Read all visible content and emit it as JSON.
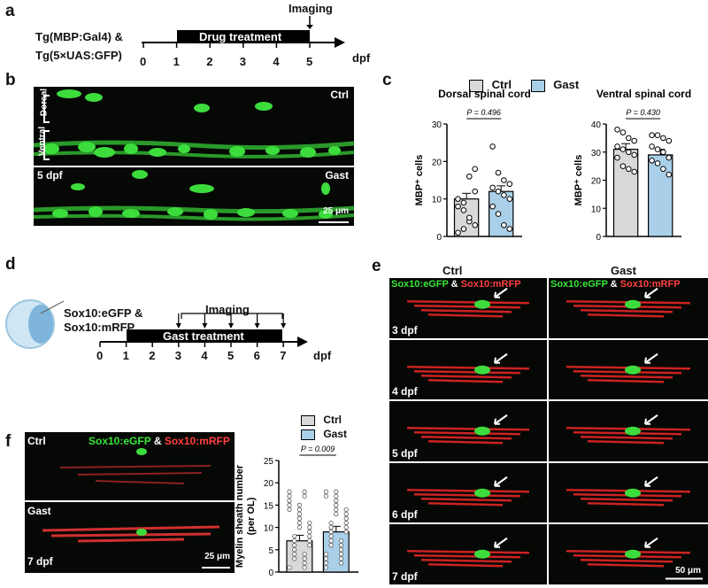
{
  "panel_labels": {
    "a": "a",
    "b": "b",
    "c": "c",
    "d": "d",
    "e": "e",
    "f": "f"
  },
  "panel_a": {
    "line1": "Tg(MBP:Gal4) &",
    "line2": "Tg(5×UAS:GFP)",
    "imaging": "Imaging",
    "treatment": "Drug treatment",
    "ticks": [
      "0",
      "1",
      "2",
      "3",
      "4",
      "5"
    ],
    "unit": "dpf"
  },
  "panel_b": {
    "ctrl": "Ctrl",
    "gast": "Gast",
    "age": "5 dpf",
    "dorsal": "Dorsal",
    "ventral": "Ventral",
    "scale": "25 μm"
  },
  "panel_c": {
    "legend": [
      "Ctrl",
      "Gast"
    ],
    "colors": {
      "ctrl": "#d9d9d9",
      "gast": "#a9d0e8"
    },
    "chart_data": [
      {
        "type": "bar",
        "title": "Dorsal spinal cord",
        "ylabel": "MBP⁺ cells",
        "categories": [
          "Ctrl",
          "Gast"
        ],
        "values": [
          10,
          12
        ],
        "ylim": [
          0,
          30
        ],
        "yticks": [
          "0",
          "10",
          "20",
          "30"
        ],
        "p_value": "P = 0.496",
        "points": [
          [
            8,
            9,
            16,
            18,
            10,
            7,
            4,
            3,
            1,
            2,
            5,
            12
          ],
          [
            24,
            17,
            15,
            14,
            13,
            12,
            11,
            10,
            8,
            6,
            3,
            2
          ]
        ]
      },
      {
        "type": "bar",
        "title": "Ventral spinal cord",
        "ylabel": "MBP⁺ cells",
        "categories": [
          "Ctrl",
          "Gast"
        ],
        "values": [
          31,
          29
        ],
        "ylim": [
          0,
          40
        ],
        "yticks": [
          "0",
          "10",
          "20",
          "30",
          "40"
        ],
        "p_value": "P = 0.430",
        "points": [
          [
            38,
            37,
            35,
            34,
            32,
            31,
            30,
            29,
            28,
            25,
            24,
            23
          ],
          [
            36,
            36,
            35,
            34,
            32,
            31,
            30,
            28,
            27,
            26,
            24,
            22
          ]
        ]
      }
    ]
  },
  "panel_d": {
    "line1": "Sox10:eGFP &",
    "line2": "Sox10:mRFP",
    "imaging": "Imaging",
    "treatment": "Gast treatment",
    "ticks": [
      "0",
      "1",
      "2",
      "3",
      "4",
      "5",
      "6",
      "7"
    ],
    "unit": "dpf"
  },
  "panel_e": {
    "ctrl": "Ctrl",
    "gast": "Gast",
    "marker_green": "Sox10:eGFP",
    "amp": "&",
    "marker_red": "Sox10:mRFP",
    "rows": [
      "3 dpf",
      "4 dpf",
      "5 dpf",
      "6 dpf",
      "7 dpf"
    ],
    "scale": "50 μm"
  },
  "panel_f": {
    "ctrl": "Ctrl",
    "gast": "Gast",
    "age": "7 dpf",
    "marker_green": "Sox10:eGFP",
    "amp": "&",
    "marker_red": "Sox10:mRFP",
    "scale": "25 μm",
    "legend": [
      "Ctrl",
      "Gast"
    ],
    "chart_data": {
      "type": "bar",
      "ylabel_line1": "Myelin sheath number",
      "ylabel_line2": "(per OL)",
      "categories": [
        "Ctrl",
        "Gast"
      ],
      "values": [
        7,
        9
      ],
      "ylim": [
        0,
        25
      ],
      "yticks": [
        "0",
        "5",
        "10",
        "15",
        "20",
        "25"
      ],
      "p_value": "P = 0.009"
    }
  }
}
